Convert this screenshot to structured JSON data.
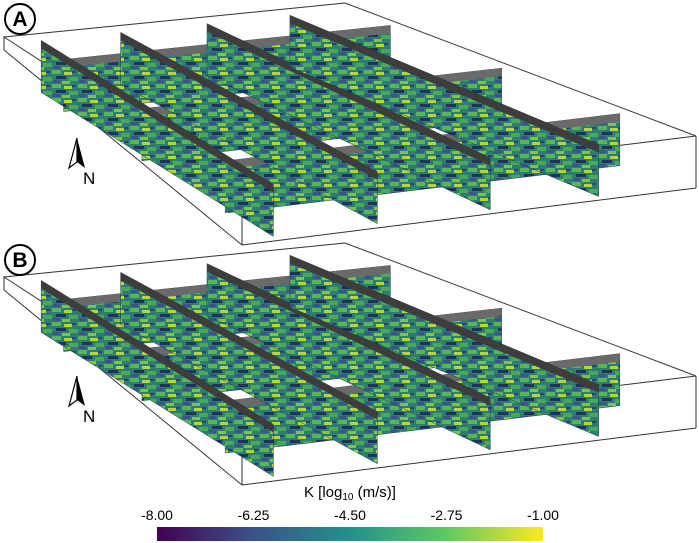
{
  "panels": [
    {
      "label": "A",
      "north": "N"
    },
    {
      "label": "B",
      "north": "N"
    }
  ],
  "colorbar": {
    "title": "K [log10 (m/s)]",
    "title_main": "K [log",
    "title_sub": "10",
    "title_end": " (m/s)]",
    "ticks": [
      "-8.00",
      "-6.25",
      "-4.50",
      "-2.75",
      "-1.00"
    ],
    "min": -8.0,
    "max": -1.0,
    "colormap": [
      "#440154",
      "#3b528b",
      "#21918c",
      "#5ec962",
      "#fde725"
    ]
  },
  "colors": {
    "frame": "#333333",
    "wall_top": "#6a6a6a",
    "section_base": "#2f6f74",
    "section_dark": "#21315f",
    "section_green": "#5ab556",
    "section_yellow": "#b8d43a"
  }
}
